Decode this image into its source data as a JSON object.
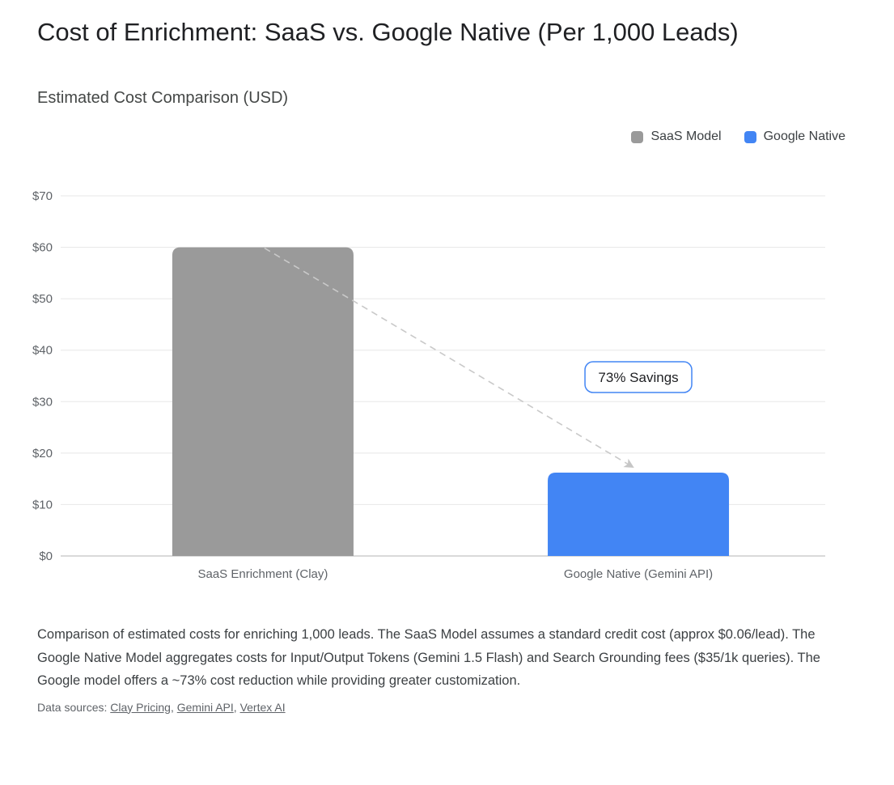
{
  "page": {
    "title": "Cost of Enrichment: SaaS vs. Google Native (Per 1,000 Leads)",
    "subtitle": "Estimated Cost Comparison (USD)"
  },
  "chart_data": {
    "type": "bar",
    "title": "Estimated Cost Comparison (USD)",
    "categories": [
      "SaaS Enrichment (Clay)",
      "Google Native (Gemini API)"
    ],
    "values": [
      60,
      16.2
    ],
    "bar_colors": [
      "#9a9a9a",
      "#4285f4"
    ],
    "legend": [
      {
        "label": "SaaS Model",
        "color": "#9a9a9a"
      },
      {
        "label": "Google Native",
        "color": "#4285f4"
      }
    ],
    "legend_position": "top-right",
    "xlabel": "",
    "ylabel": "",
    "ylim": [
      0,
      70
    ],
    "yticks": [
      0,
      10,
      20,
      30,
      40,
      50,
      60,
      70
    ],
    "ytick_prefix": "$",
    "grid": true,
    "annotation": {
      "label": "73% Savings",
      "arrow_from_category": "SaaS Enrichment (Clay)",
      "arrow_to_category": "Google Native (Gemini API)",
      "arrow_style": "dashed"
    }
  },
  "caption": "Comparison of estimated costs for enriching 1,000 leads. The SaaS Model assumes a standard credit cost (approx $0.06/lead). The Google Native Model aggregates costs for Input/Output Tokens (Gemini 1.5 Flash) and Search Grounding fees ($35/1k queries). The Google model offers a ~73% cost reduction while providing greater customization.",
  "sources": {
    "prefix": "Data sources:",
    "links": [
      "Clay Pricing",
      "Gemini API",
      "Vertex AI"
    ]
  }
}
